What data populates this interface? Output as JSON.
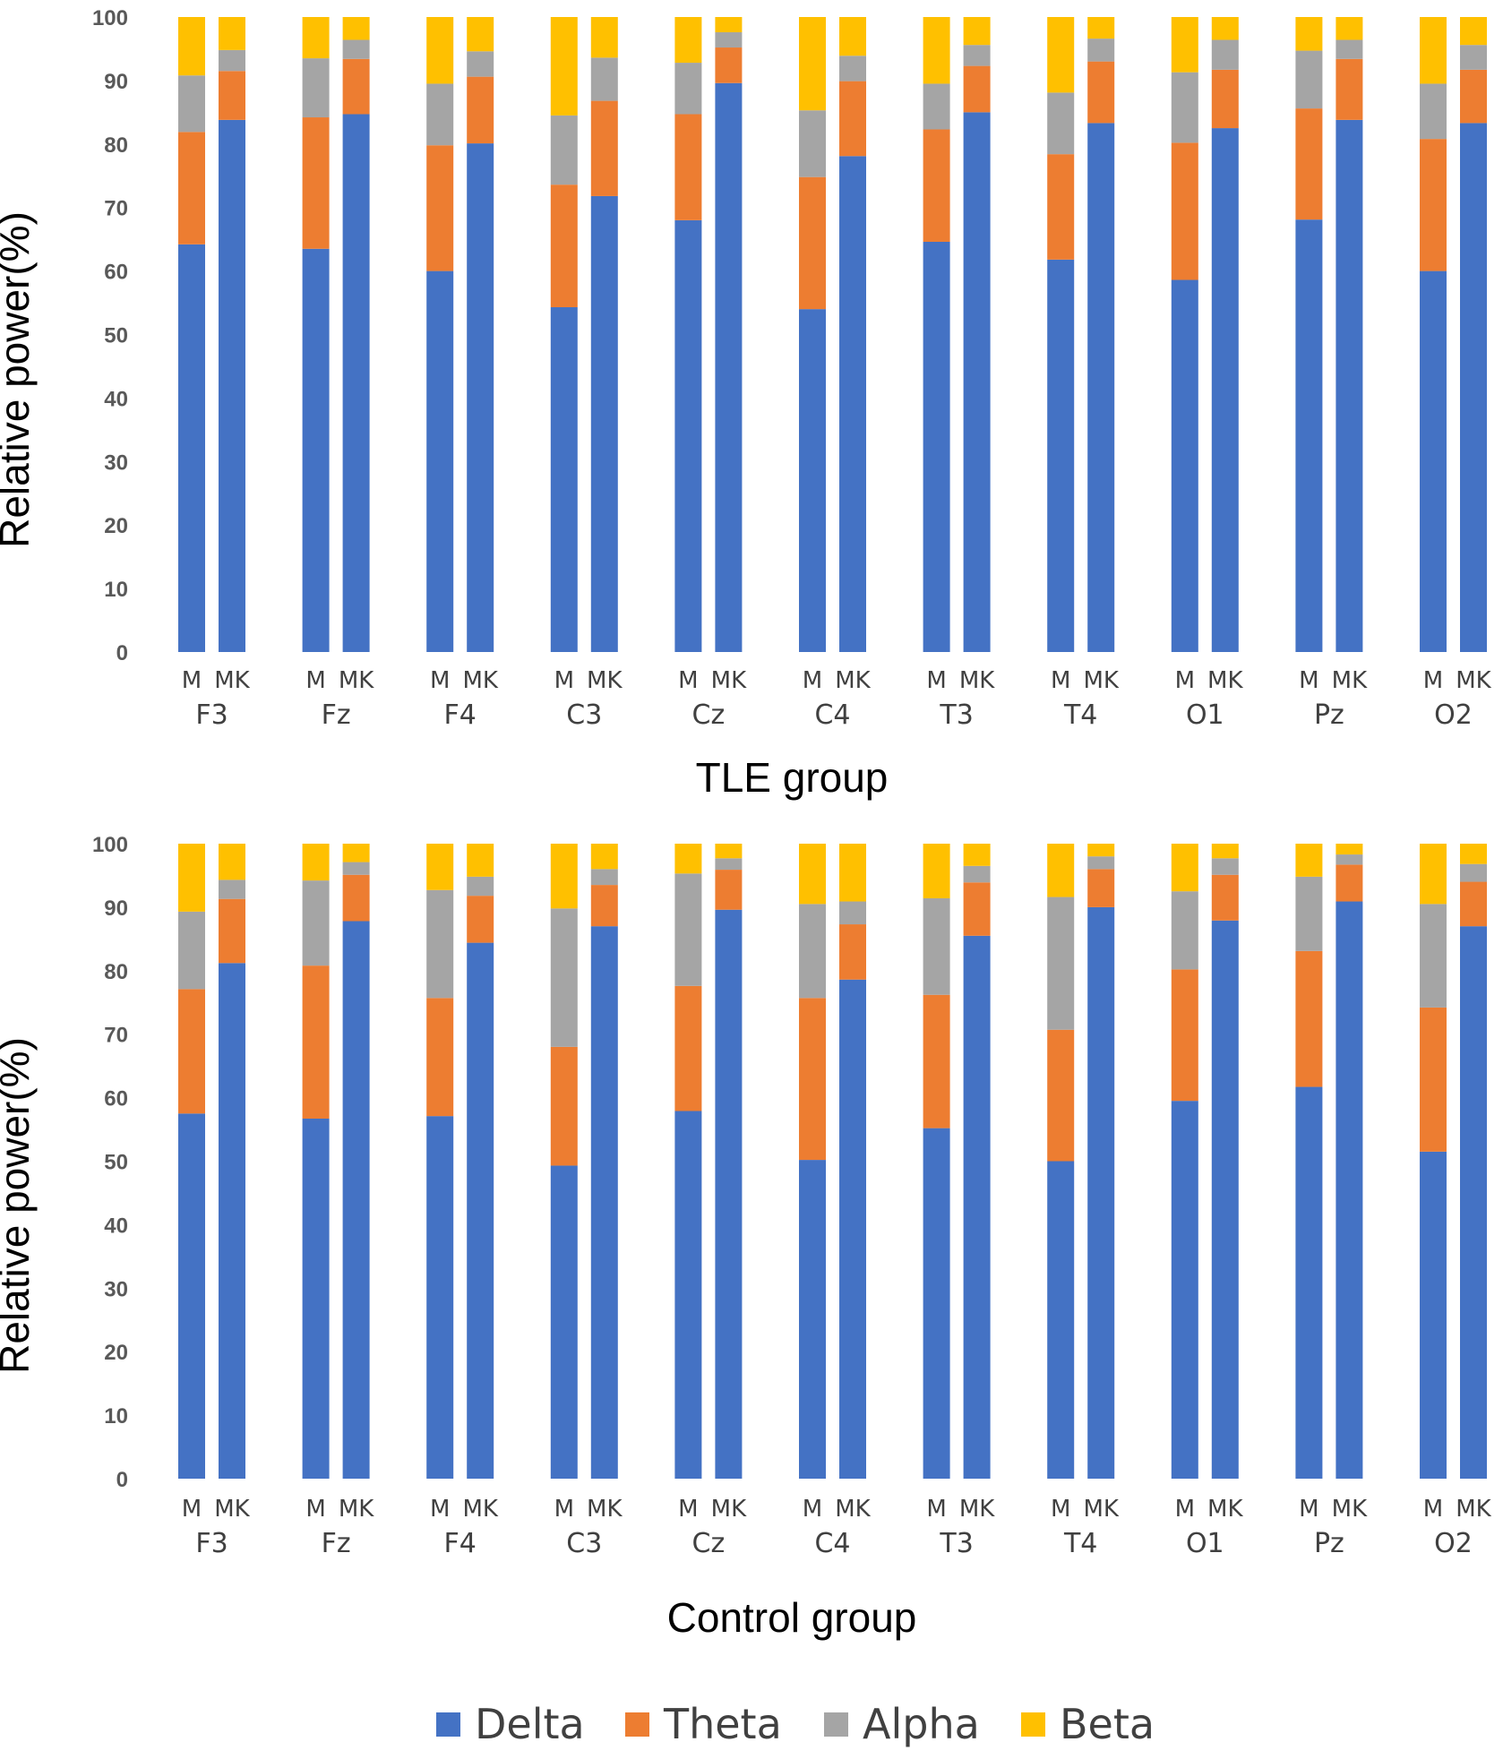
{
  "chart_data": [
    {
      "type": "bar",
      "stacked": true,
      "title": "TLE group",
      "ylabel": "Relative power(%)",
      "ylim": [
        0,
        100
      ],
      "yticks": [
        0,
        10,
        20,
        30,
        40,
        50,
        60,
        70,
        80,
        90,
        100
      ],
      "electrodes": [
        "F3",
        "Fz",
        "F4",
        "C3",
        "Cz",
        "C4",
        "T3",
        "T4",
        "O1",
        "Pz",
        "O2"
      ],
      "conditions": [
        "M",
        "MK"
      ],
      "series": [
        {
          "name": "Delta",
          "M": [
            64.2,
            63.5,
            60.0,
            54.3,
            68.0,
            54.0,
            64.6,
            61.8,
            58.6,
            68.1,
            60.0
          ],
          "MK": [
            83.8,
            84.7,
            80.1,
            71.8,
            89.6,
            78.1,
            85.0,
            83.3,
            82.5,
            83.8,
            83.3
          ]
        },
        {
          "name": "Theta",
          "M": [
            17.7,
            20.7,
            19.8,
            19.3,
            16.7,
            20.8,
            17.7,
            16.6,
            21.6,
            17.5,
            20.8
          ],
          "MK": [
            7.7,
            8.7,
            10.5,
            15.0,
            5.6,
            11.8,
            7.3,
            9.7,
            9.2,
            9.6,
            8.4
          ]
        },
        {
          "name": "Alpha",
          "M": [
            8.9,
            9.3,
            9.7,
            10.9,
            8.1,
            10.5,
            7.2,
            9.7,
            11.1,
            9.1,
            8.7
          ],
          "MK": [
            3.3,
            3.0,
            4.0,
            6.8,
            2.4,
            4.0,
            3.3,
            3.6,
            4.7,
            3.0,
            3.9
          ]
        },
        {
          "name": "Beta",
          "M": [
            9.2,
            6.5,
            10.5,
            15.5,
            7.2,
            14.7,
            10.5,
            11.9,
            8.7,
            5.3,
            10.5
          ],
          "MK": [
            5.2,
            3.6,
            5.4,
            6.4,
            2.4,
            6.1,
            4.4,
            3.4,
            3.6,
            3.6,
            4.4
          ]
        }
      ]
    },
    {
      "type": "bar",
      "stacked": true,
      "title": "Control group",
      "ylabel": "Relative power(%)",
      "ylim": [
        0,
        100
      ],
      "yticks": [
        0,
        10,
        20,
        30,
        40,
        50,
        60,
        70,
        80,
        90,
        100
      ],
      "electrodes": [
        "F3",
        "Fz",
        "F4",
        "C3",
        "Cz",
        "C4",
        "T3",
        "T4",
        "O1",
        "Pz",
        "O2"
      ],
      "conditions": [
        "M",
        "MK"
      ],
      "series": [
        {
          "name": "Delta",
          "M": [
            57.5,
            56.7,
            57.1,
            49.3,
            57.9,
            50.2,
            55.2,
            50.0,
            59.5,
            61.7,
            51.5
          ],
          "MK": [
            81.2,
            87.8,
            84.4,
            87.0,
            89.6,
            78.6,
            85.5,
            90.0,
            87.9,
            90.9,
            87.0
          ]
        },
        {
          "name": "Theta",
          "M": [
            19.6,
            24.1,
            18.6,
            18.7,
            19.7,
            25.5,
            21.0,
            20.7,
            20.7,
            21.4,
            22.7
          ],
          "MK": [
            10.1,
            7.3,
            7.4,
            6.5,
            6.3,
            8.7,
            8.4,
            6.0,
            7.2,
            5.8,
            7.0
          ]
        },
        {
          "name": "Alpha",
          "M": [
            12.2,
            13.4,
            17.0,
            21.8,
            17.7,
            14.8,
            15.2,
            20.9,
            12.3,
            11.7,
            16.3
          ],
          "MK": [
            3.0,
            2.0,
            3.0,
            2.5,
            1.8,
            3.6,
            2.6,
            2.0,
            2.6,
            1.6,
            2.8
          ]
        },
        {
          "name": "Beta",
          "M": [
            10.7,
            5.8,
            7.3,
            10.2,
            4.7,
            9.5,
            8.6,
            8.4,
            7.5,
            5.2,
            9.5
          ],
          "MK": [
            5.7,
            2.9,
            5.2,
            4.0,
            2.3,
            9.1,
            3.5,
            2.0,
            2.3,
            1.7,
            3.2
          ]
        }
      ]
    }
  ],
  "legend": [
    {
      "name": "Delta",
      "color": "#4472C4"
    },
    {
      "name": "Theta",
      "color": "#ED7D31"
    },
    {
      "name": "Alpha",
      "color": "#A5A5A5"
    },
    {
      "name": "Beta",
      "color": "#FFC000"
    }
  ]
}
